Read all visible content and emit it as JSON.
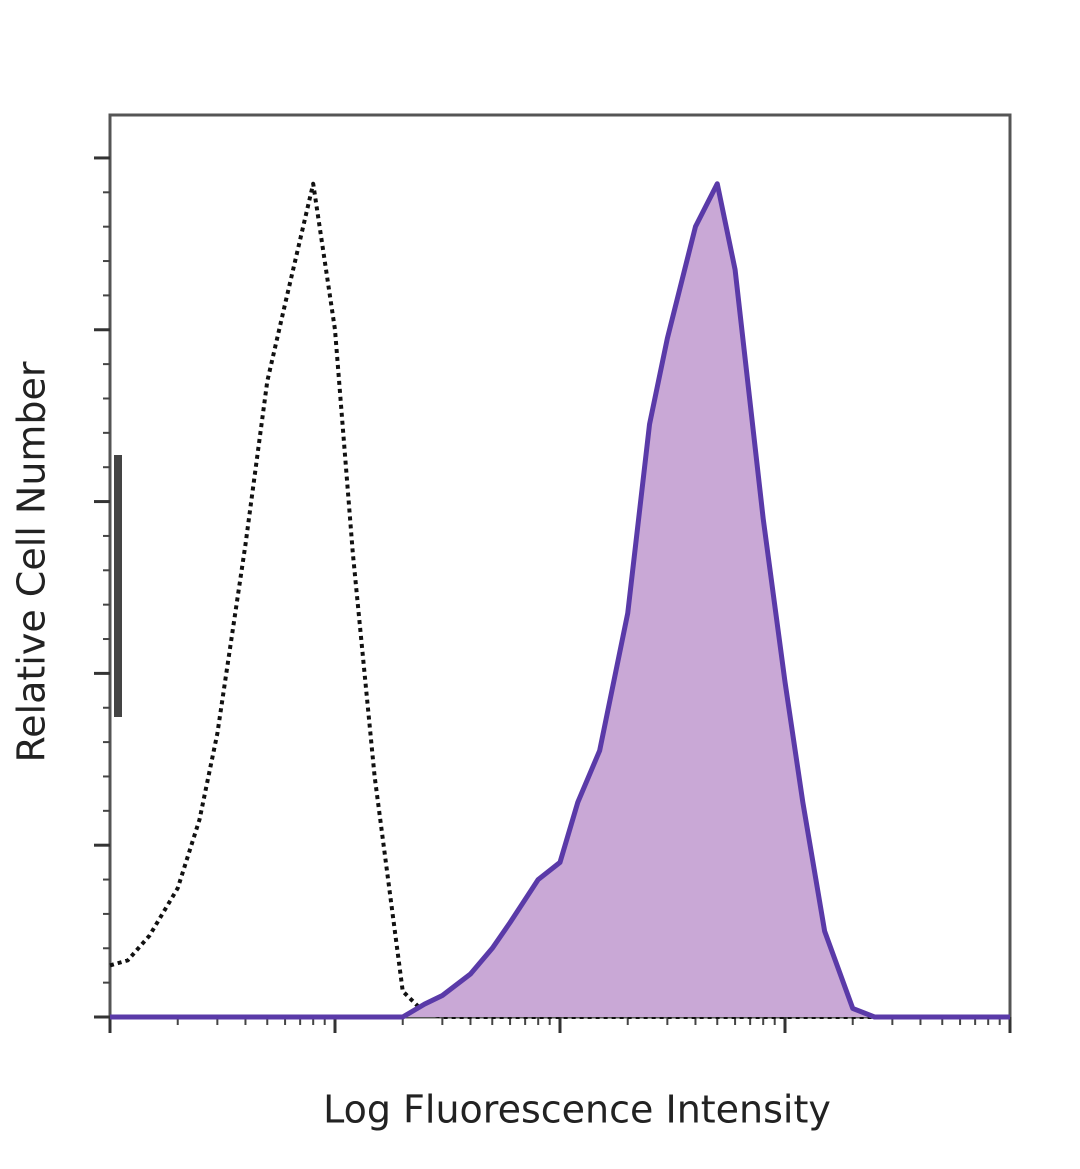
{
  "chart_data": {
    "type": "line",
    "x_label": "Log Fluorescence Intensity",
    "y_label": "Relative Cell Number",
    "xscale": "log",
    "xlim": [
      1,
      10000
    ],
    "xticks": [
      1,
      10,
      100,
      1000,
      10000
    ],
    "ylim": [
      0,
      105
    ],
    "yticks": [
      0,
      20,
      40,
      60,
      80,
      100
    ],
    "x": [
      1,
      1.2,
      1.5,
      2,
      2.5,
      3,
      4,
      5,
      6,
      8,
      10,
      12,
      15,
      20,
      25,
      30,
      40,
      50,
      60,
      80,
      100,
      120,
      150,
      200,
      250,
      300,
      400,
      500,
      600,
      800,
      1000,
      1200,
      1500,
      2000,
      2500,
      3000,
      4000,
      5000,
      6000,
      8000,
      10000
    ],
    "series": [
      {
        "color": "#111111",
        "style": "dotted",
        "values": [
          6,
          6.6,
          9.5,
          15,
          23,
          33,
          55,
          74,
          83,
          97,
          80,
          54,
          28,
          3,
          0.5,
          0,
          0,
          0,
          0,
          0,
          0,
          0,
          0,
          0,
          0,
          0,
          0,
          0,
          0,
          0,
          0,
          0,
          0,
          0,
          0,
          0,
          0,
          0,
          0,
          0,
          0
        ]
      },
      {
        "color": "#5a3aa8",
        "fill": "#c9a8d6",
        "style": "solid",
        "values": [
          0,
          0,
          0,
          0,
          0,
          0,
          0,
          0,
          0,
          0,
          0,
          0,
          0,
          0,
          1.5,
          2.5,
          5,
          8,
          11,
          16,
          18,
          25,
          31,
          47,
          69,
          79,
          92,
          97,
          87,
          58,
          39,
          25,
          10,
          1,
          0,
          0,
          0,
          0,
          0,
          0,
          0
        ]
      }
    ]
  }
}
